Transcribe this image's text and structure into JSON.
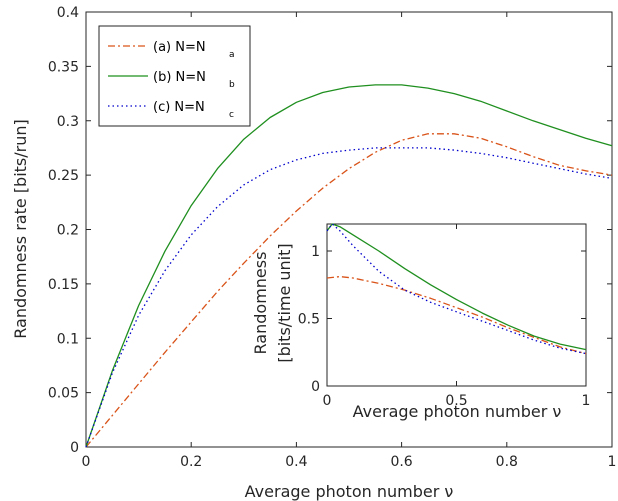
{
  "chart_data": [
    {
      "type": "line",
      "xlabel": "Average photon number ν",
      "ylabel": "Randomness rate [bits/run]",
      "xlim": [
        0,
        1
      ],
      "ylim": [
        0,
        0.4
      ],
      "xticks": [
        "0",
        "0.2",
        "0.4",
        "0.6",
        "0.8",
        "1"
      ],
      "yticks": [
        "0",
        "0.05",
        "0.1",
        "0.15",
        "0.2",
        "0.25",
        "0.3",
        "0.35",
        "0.4"
      ],
      "grid": false,
      "legend_placement": "top-left",
      "series": [
        {
          "name": "(a) N=N",
          "sub": "a",
          "color": "#d95319",
          "dash": "dashdot",
          "x": [
            0,
            0.05,
            0.1,
            0.15,
            0.2,
            0.25,
            0.3,
            0.35,
            0.4,
            0.45,
            0.5,
            0.55,
            0.6,
            0.65,
            0.7,
            0.75,
            0.8,
            0.85,
            0.9,
            0.95,
            1.0
          ],
          "y": [
            0,
            0.029,
            0.058,
            0.087,
            0.115,
            0.143,
            0.169,
            0.194,
            0.217,
            0.238,
            0.256,
            0.271,
            0.282,
            0.288,
            0.288,
            0.284,
            0.276,
            0.267,
            0.259,
            0.254,
            0.25
          ]
        },
        {
          "name": "(b) N=N",
          "sub": "b",
          "color": "#1f8f1f",
          "dash": "solid",
          "x": [
            0,
            0.05,
            0.1,
            0.15,
            0.2,
            0.25,
            0.3,
            0.35,
            0.4,
            0.45,
            0.5,
            0.55,
            0.6,
            0.65,
            0.7,
            0.75,
            0.8,
            0.85,
            0.9,
            0.95,
            1.0
          ],
          "y": [
            0,
            0.07,
            0.13,
            0.18,
            0.222,
            0.256,
            0.283,
            0.303,
            0.317,
            0.326,
            0.331,
            0.333,
            0.333,
            0.33,
            0.325,
            0.318,
            0.309,
            0.3,
            0.292,
            0.284,
            0.277
          ]
        },
        {
          "name": "(c) N=N",
          "sub": "c",
          "color": "#0000cc",
          "dash": "dotted",
          "x": [
            0,
            0.05,
            0.1,
            0.15,
            0.2,
            0.25,
            0.3,
            0.35,
            0.4,
            0.45,
            0.5,
            0.55,
            0.6,
            0.65,
            0.7,
            0.75,
            0.8,
            0.85,
            0.9,
            0.95,
            1.0
          ],
          "y": [
            0,
            0.068,
            0.121,
            0.162,
            0.195,
            0.221,
            0.241,
            0.255,
            0.264,
            0.27,
            0.273,
            0.275,
            0.275,
            0.275,
            0.273,
            0.27,
            0.266,
            0.261,
            0.256,
            0.251,
            0.247
          ]
        }
      ]
    },
    {
      "type": "line",
      "inset": true,
      "xlabel": "Average photon number ν",
      "ylabel": "Randomness",
      "ylabel2": "[bits/time unit]",
      "xlim": [
        0,
        1
      ],
      "ylim": [
        0,
        1.2
      ],
      "xticks": [
        "0",
        "0.5",
        "1"
      ],
      "yticks": [
        "0",
        "0.5",
        "1"
      ],
      "series": [
        {
          "name": "(a) N=N",
          "sub": "a",
          "color": "#d95319",
          "dash": "dashdot",
          "x": [
            0,
            0.05,
            0.1,
            0.2,
            0.3,
            0.4,
            0.5,
            0.6,
            0.7,
            0.8,
            0.9,
            1.0
          ],
          "y": [
            0.8,
            0.81,
            0.8,
            0.76,
            0.71,
            0.65,
            0.58,
            0.51,
            0.43,
            0.36,
            0.29,
            0.24
          ]
        },
        {
          "name": "(b) N=N",
          "sub": "b",
          "color": "#1f8f1f",
          "dash": "solid",
          "x": [
            0,
            0.02,
            0.05,
            0.1,
            0.2,
            0.3,
            0.4,
            0.5,
            0.6,
            0.7,
            0.8,
            0.9,
            1.0
          ],
          "y": [
            1.15,
            1.2,
            1.18,
            1.12,
            1.0,
            0.87,
            0.75,
            0.64,
            0.54,
            0.45,
            0.37,
            0.31,
            0.27
          ]
        },
        {
          "name": "(c) N=N",
          "sub": "c",
          "color": "#0000cc",
          "dash": "dotted",
          "x": [
            0,
            0.02,
            0.05,
            0.1,
            0.2,
            0.3,
            0.4,
            0.5,
            0.6,
            0.7,
            0.8,
            0.9,
            1.0
          ],
          "y": [
            1.15,
            1.2,
            1.15,
            1.04,
            0.85,
            0.71,
            0.62,
            0.55,
            0.48,
            0.41,
            0.34,
            0.28,
            0.24
          ]
        }
      ]
    }
  ]
}
